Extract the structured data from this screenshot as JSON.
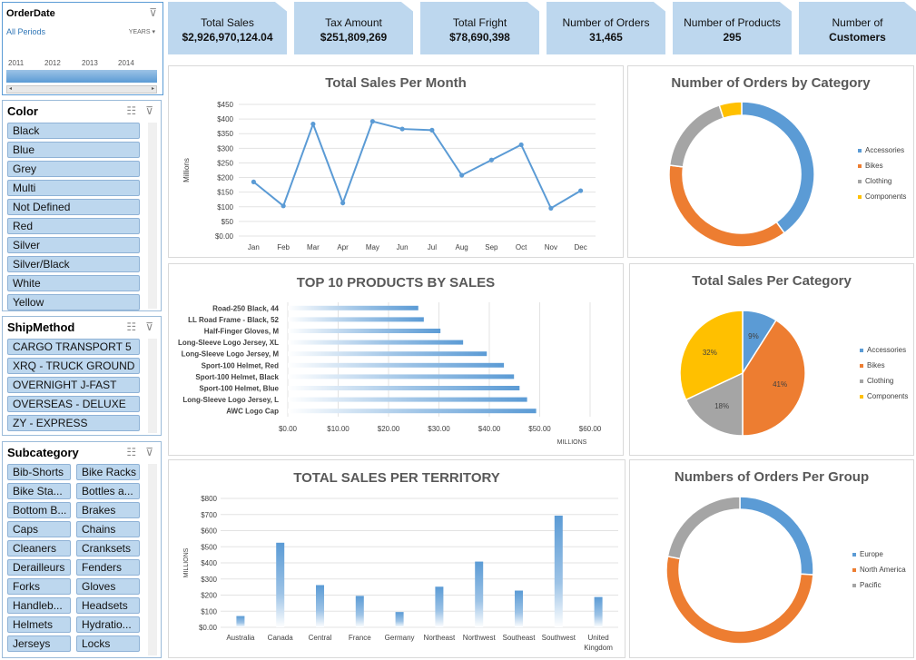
{
  "orderdate": {
    "title": "OrderDate",
    "period": "All Periods",
    "unit": "YEARS",
    "years": [
      "2011",
      "2012",
      "2013",
      "2014"
    ]
  },
  "color_slicer": {
    "title": "Color",
    "items": [
      "Black",
      "Blue",
      "Grey",
      "Multi",
      "Not Defined",
      "Red",
      "Silver",
      "Silver/Black",
      "White",
      "Yellow"
    ]
  },
  "shipmethod_slicer": {
    "title": "ShipMethod",
    "items": [
      "CARGO TRANSPORT 5",
      "XRQ - TRUCK GROUND",
      "OVERNIGHT J-FAST",
      "OVERSEAS - DELUXE",
      "ZY - EXPRESS"
    ]
  },
  "subcategory_slicer": {
    "title": "Subcategory",
    "items": [
      "Bib-Shorts",
      "Bike Racks",
      "Bike Sta...",
      "Bottles a...",
      "Bottom B...",
      "Brakes",
      "Caps",
      "Chains",
      "Cleaners",
      "Cranksets",
      "Derailleurs",
      "Fenders",
      "Forks",
      "Gloves",
      "Handleb...",
      "Headsets",
      "Helmets",
      "Hydratio...",
      "Jerseys",
      "Locks"
    ]
  },
  "kpis": [
    {
      "label": "Total Sales",
      "value": "$2,926,970,124.04"
    },
    {
      "label": "Tax Amount",
      "value": "$251,809,269"
    },
    {
      "label": "Total Fright",
      "value": "$78,690,398"
    },
    {
      "label": "Number of Orders",
      "value": "31,465"
    },
    {
      "label": "Number of Products",
      "value": "295"
    },
    {
      "label": "Number of",
      "value": "Customers"
    }
  ],
  "colors": {
    "blue": "#5b9bd5",
    "orange": "#ed7d31",
    "grey": "#a5a5a5",
    "yellow": "#ffc000",
    "slicer": "#bdd7ee"
  },
  "chart_data": [
    {
      "type": "line",
      "title": "Total Sales Per Month",
      "ylabel": "Millions",
      "categories": [
        "Jan",
        "Feb",
        "Mar",
        "Apr",
        "May",
        "Jun",
        "Jul",
        "Aug",
        "Sep",
        "Oct",
        "Nov",
        "Dec"
      ],
      "values": [
        185,
        103,
        383,
        113,
        392,
        366,
        362,
        208,
        260,
        312,
        95,
        155
      ],
      "ylim": [
        0,
        450
      ],
      "yticks": [
        "$0.00",
        "$50",
        "$100",
        "$150",
        "$200",
        "$250",
        "$300",
        "$350",
        "$400",
        "$450"
      ],
      "grid": true
    },
    {
      "type": "pie",
      "title": "Number of Orders by Category",
      "donut": true,
      "categories": [
        "Accessories",
        "Bikes",
        "Clothing",
        "Components"
      ],
      "values": [
        40,
        37,
        18,
        5
      ]
    },
    {
      "type": "bar",
      "orientation": "horizontal",
      "title": "TOP 10 PRODUCTS BY SALES",
      "xlabel": "MILLIONS",
      "categories": [
        "Road-250 Black, 44",
        "LL Road Frame - Black, 52",
        "Half-Finger Gloves, M",
        "Long-Sleeve Logo Jersey, XL",
        "Long-Sleeve Logo Jersey, M",
        "Sport-100 Helmet, Red",
        "Sport-100 Helmet, Black",
        "Sport-100 Helmet, Blue",
        "Long-Sleeve Logo Jersey, L",
        "AWC Logo Cap"
      ],
      "values": [
        25.9,
        27.0,
        30.3,
        34.8,
        39.5,
        42.9,
        44.9,
        46.0,
        47.5,
        49.3
      ],
      "xlim": [
        0,
        60
      ],
      "xticks": [
        "$0.00",
        "$10.00",
        "$20.00",
        "$30.00",
        "$40.00",
        "$50.00",
        "$60.00"
      ],
      "grid": true
    },
    {
      "type": "pie",
      "title": "Total Sales Per Category",
      "categories": [
        "Accessories",
        "Bikes",
        "Clothing",
        "Components"
      ],
      "values": [
        9,
        41,
        18,
        32
      ],
      "data_labels": [
        "9%",
        "41%",
        "18%",
        "32%"
      ]
    },
    {
      "type": "bar",
      "title": "TOTAL SALES PER TERRITORY",
      "ylabel": "MILLIONS",
      "categories": [
        "Australia",
        "Canada",
        "Central",
        "France",
        "Germany",
        "Northeast",
        "Northwest",
        "Southeast",
        "Southwest",
        "United Kingdom"
      ],
      "values": [
        70,
        525,
        262,
        195,
        95,
        252,
        408,
        228,
        693,
        188
      ],
      "ylim": [
        0,
        800
      ],
      "yticks": [
        "$0.00",
        "$100",
        "$200",
        "$300",
        "$400",
        "$500",
        "$600",
        "$700",
        "$800"
      ],
      "grid": true
    },
    {
      "type": "pie",
      "title": "Numbers of Orders Per Group",
      "donut": true,
      "categories": [
        "Europe",
        "North America",
        "Pacific"
      ],
      "values": [
        26,
        52,
        22
      ]
    }
  ]
}
